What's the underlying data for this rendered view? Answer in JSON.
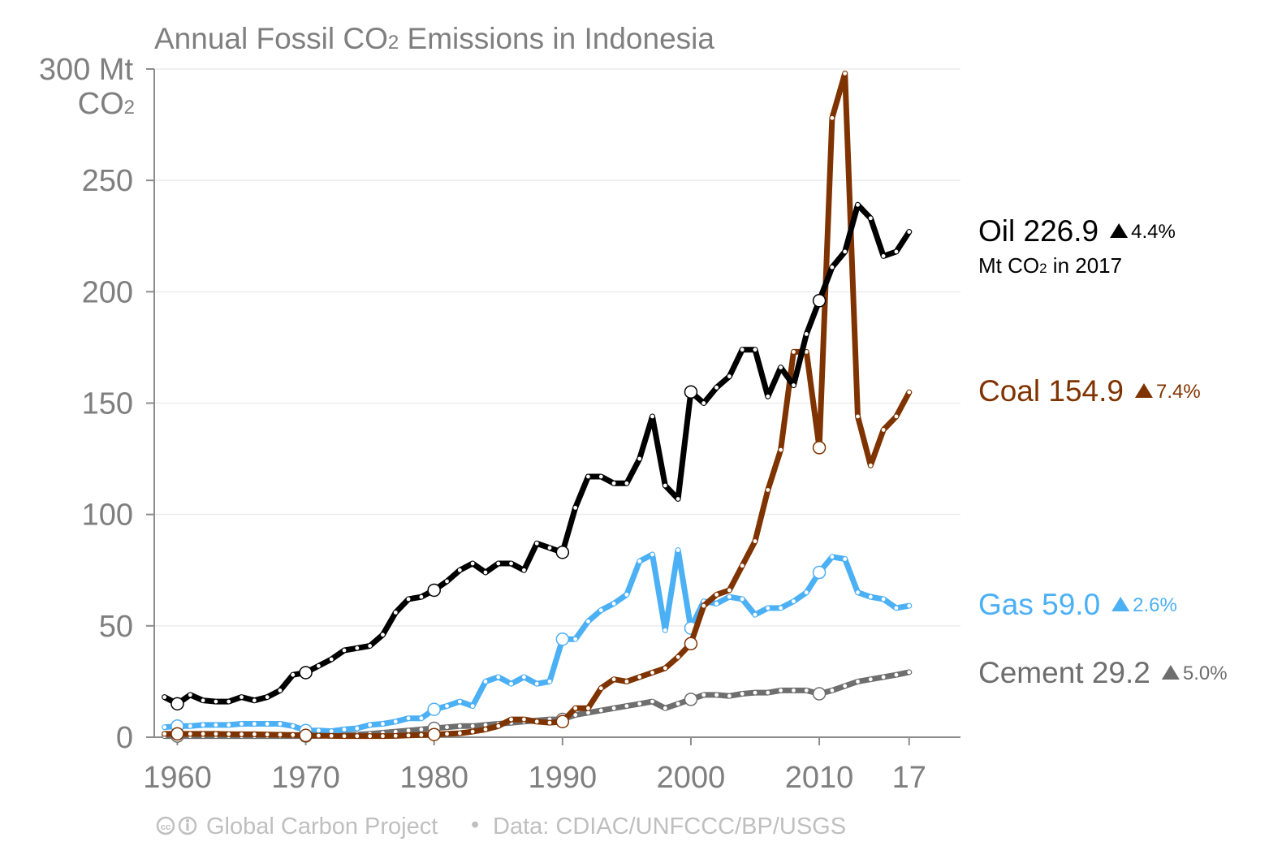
{
  "chart_data": {
    "type": "line",
    "title": "Annual Fossil CO₂ Emissions in Indonesia",
    "title_parts": [
      "Annual Fossil CO",
      "2",
      " Emissions in Indonesia"
    ],
    "ylabel": "Mt CO₂",
    "ylabel_parts": [
      "300 Mt",
      "CO",
      "2"
    ],
    "ylim": [
      0,
      300
    ],
    "xlim": [
      1958.2,
      2021
    ],
    "yticks": [
      "0",
      "50",
      "100",
      "150",
      "200",
      "250"
    ],
    "ytick_values": [
      0,
      50,
      100,
      150,
      200,
      250
    ],
    "xticks": [
      "1960",
      "1970",
      "1980",
      "1990",
      "2000",
      "2010",
      "17"
    ],
    "xtick_values": [
      1960,
      1970,
      1980,
      1990,
      2000,
      2010,
      2017
    ],
    "grid": true,
    "x": [
      1959,
      1960,
      1961,
      1962,
      1963,
      1964,
      1965,
      1966,
      1967,
      1968,
      1969,
      1970,
      1971,
      1972,
      1973,
      1974,
      1975,
      1976,
      1977,
      1978,
      1979,
      1980,
      1981,
      1982,
      1983,
      1984,
      1985,
      1986,
      1987,
      1988,
      1989,
      1990,
      1991,
      1992,
      1993,
      1994,
      1995,
      1996,
      1997,
      1998,
      1999,
      2000,
      2001,
      2002,
      2003,
      2004,
      2005,
      2006,
      2007,
      2008,
      2009,
      2010,
      2011,
      2012,
      2013,
      2014,
      2015,
      2016,
      2017
    ],
    "highlight_years": [
      1960,
      1970,
      1980,
      1990,
      2000,
      2010
    ],
    "series": [
      {
        "name": "Coal",
        "color": "#7f3300",
        "values": [
          1.5,
          1.5,
          1.5,
          1.5,
          1.5,
          1.4,
          1.3,
          1.3,
          1.2,
          1.1,
          1.0,
          0.8,
          0.7,
          0.6,
          0.5,
          0.5,
          0.5,
          0.5,
          0.6,
          0.8,
          1.0,
          1.2,
          1.5,
          1.8,
          2.5,
          3.5,
          5,
          8,
          8,
          7,
          6.5,
          7,
          13,
          13,
          22,
          26,
          25,
          27,
          29,
          31,
          36,
          42,
          59,
          64,
          66,
          77,
          88,
          111,
          129,
          173,
          173,
          130,
          278,
          298,
          144,
          122,
          138,
          144,
          154.9
        ],
        "end_value": "154.9",
        "change": "7.4%"
      },
      {
        "name": "Oil",
        "color": "#000000",
        "values": [
          18,
          15,
          19,
          16.5,
          16,
          16,
          18,
          16.5,
          18,
          21,
          28,
          29,
          32,
          35,
          39,
          40,
          41,
          46,
          56,
          62,
          63,
          66,
          70,
          75,
          78,
          74,
          78,
          78,
          75,
          87,
          85,
          83,
          103,
          117,
          117,
          114,
          114,
          125,
          144,
          113,
          107,
          155,
          150,
          157,
          162,
          174,
          174,
          153,
          166,
          158,
          181,
          196,
          211,
          218,
          239,
          233,
          216,
          218,
          226.9
        ],
        "end_value": "226.9",
        "change": "4.4%",
        "sub_label_parts": [
          "Mt CO",
          "2",
          " in 2017"
        ]
      },
      {
        "name": "Gas",
        "color": "#4cb0f5",
        "values": [
          4.5,
          5,
          5,
          5.5,
          5.5,
          5.5,
          6,
          6,
          6,
          6,
          5,
          3,
          3,
          2.7,
          3.5,
          4,
          5.5,
          6,
          7,
          8.5,
          8.5,
          12.5,
          14,
          16,
          14,
          25,
          27,
          24,
          27,
          24,
          25,
          44,
          44,
          52,
          57,
          60,
          64,
          79,
          82,
          48,
          84,
          49,
          61,
          60,
          63,
          62,
          55,
          58,
          58,
          61,
          65,
          74,
          81,
          80,
          65,
          63,
          62,
          58,
          59.0
        ],
        "end_value": "59.0",
        "change": "2.6%"
      },
      {
        "name": "Cement",
        "color": "#6e6e6e",
        "values": [
          0.5,
          0.5,
          0.5,
          0.5,
          0.5,
          0.5,
          0.5,
          0.5,
          0.5,
          0.5,
          0.5,
          0.5,
          0.6,
          0.8,
          1,
          1.2,
          1.5,
          2,
          2.5,
          3,
          3.5,
          4,
          4.5,
          5,
          5,
          5.5,
          6,
          6.5,
          7,
          7.5,
          8,
          8,
          10,
          11,
          12,
          13,
          14,
          15,
          16,
          13,
          15,
          17,
          19,
          19,
          18.5,
          19.5,
          20,
          20,
          21,
          21,
          21,
          19.5,
          21,
          23,
          25,
          26,
          27,
          28,
          29.2
        ],
        "end_value": "29.2",
        "change": "5.0%"
      }
    ],
    "legend_placement": "right, at line ends"
  },
  "footer": {
    "cc_icon": "cc-license-icon",
    "attribution": "Global Carbon Project",
    "separator": "•",
    "source": "Data: CDIAC/UNFCCC/BP/USGS"
  }
}
